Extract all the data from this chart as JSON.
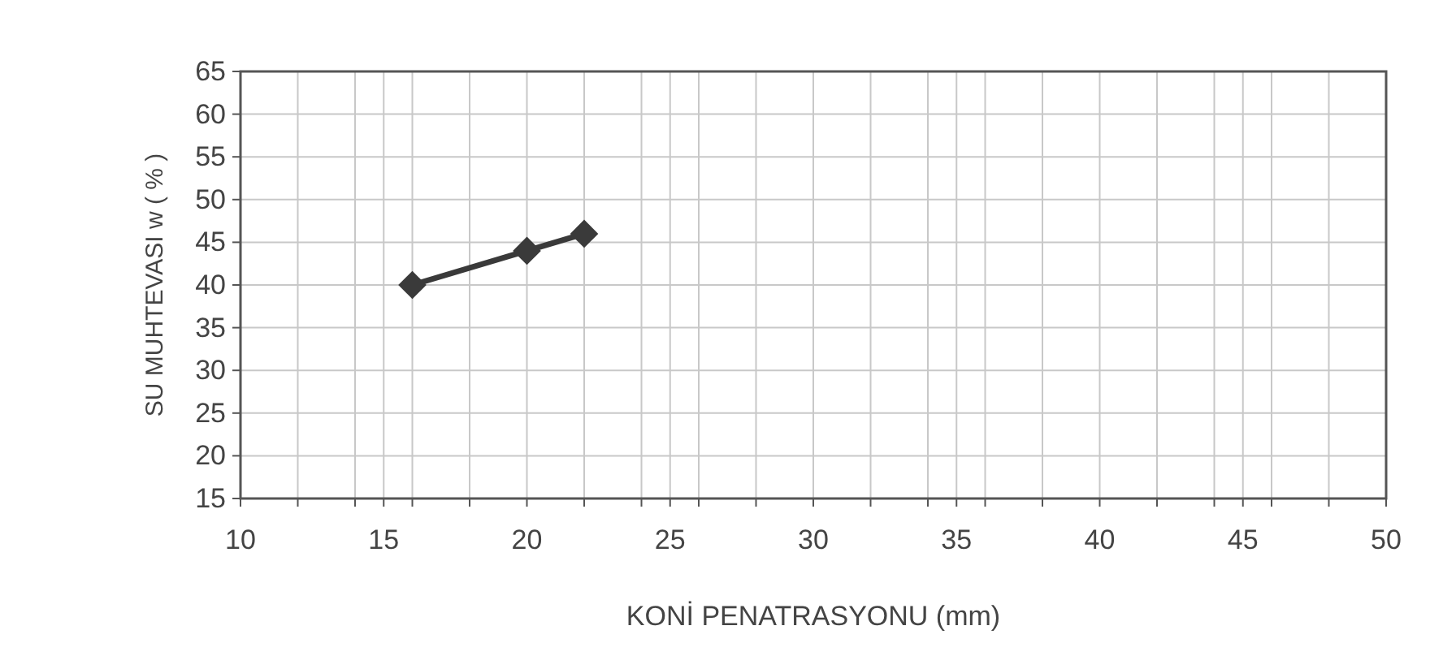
{
  "chart_data": {
    "type": "line",
    "xlabel": "KONİ  PENATRASYONU  (mm)",
    "ylabel": "SU  MUHTEVASI  w ( % )",
    "x": [
      16,
      20,
      22
    ],
    "series": [
      {
        "color": "#3a3a3a",
        "values": [
          40,
          44,
          46
        ]
      }
    ],
    "xlim": [
      10,
      50
    ],
    "ylim": [
      15,
      65
    ],
    "xticks": [
      10,
      {
        "value": 12,
        "label": null
      },
      {
        "value": 14,
        "label": null
      },
      15,
      {
        "value": 16,
        "label": null
      },
      {
        "value": 18,
        "label": null
      },
      20,
      {
        "value": 22,
        "label": null
      },
      {
        "value": 24,
        "label": null
      },
      25,
      {
        "value": 26,
        "label": null
      },
      {
        "value": 28,
        "label": null
      },
      30,
      {
        "value": 32,
        "label": null
      },
      {
        "value": 34,
        "label": null
      },
      35,
      {
        "value": 36,
        "label": null
      },
      {
        "value": 38,
        "label": null
      },
      40,
      {
        "value": 42,
        "label": null
      },
      {
        "value": 44,
        "label": null
      },
      45,
      {
        "value": 46,
        "label": null
      },
      {
        "value": 48,
        "label": null
      },
      50
    ],
    "yticks": [
      15,
      20,
      25,
      30,
      35,
      40,
      45,
      50,
      55,
      60,
      65
    ],
    "grid": true,
    "marker": "diamond",
    "line_style": "solid"
  }
}
